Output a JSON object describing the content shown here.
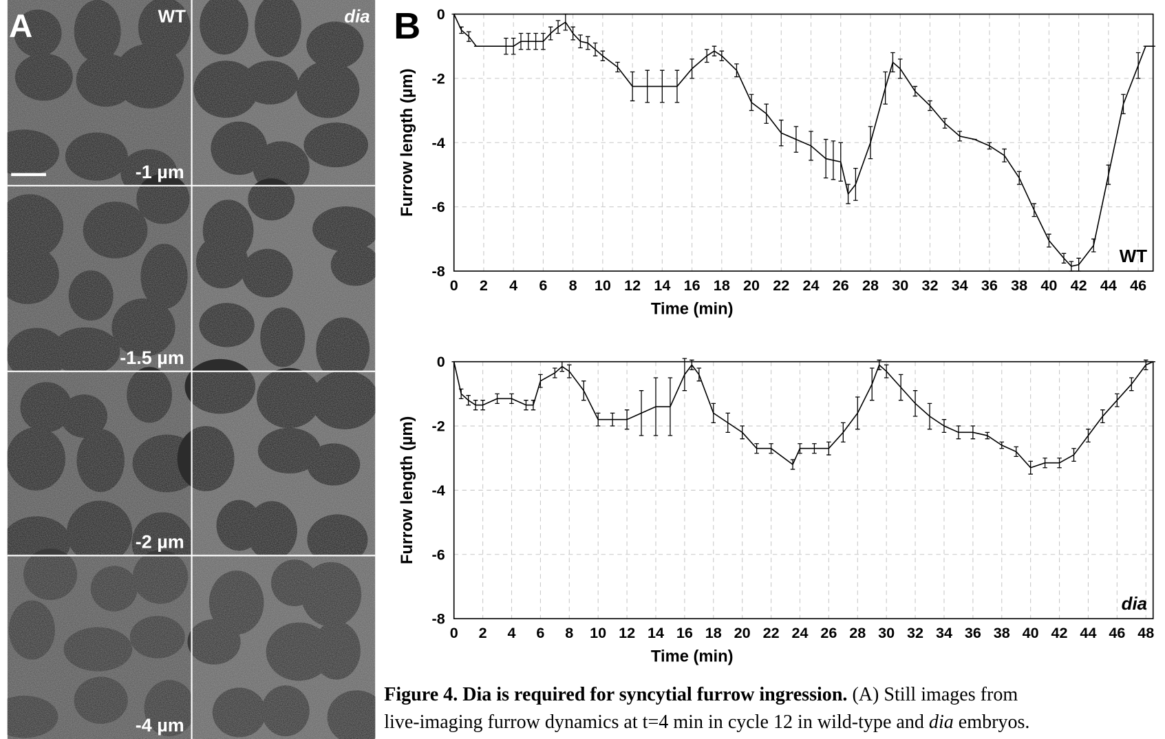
{
  "panel_a": {
    "label": "A",
    "columns": [
      "WT",
      "dia"
    ],
    "depths": [
      "-1 µm",
      "-1.5 µm",
      "-2 µm",
      "-4 µm"
    ]
  },
  "panel_b_label": "B",
  "chart_data": [
    {
      "type": "line",
      "xlabel": "Time (min)",
      "ylabel": "Furrow length (µm)",
      "annotation": "WT",
      "xlim": [
        0,
        47
      ],
      "ylim": [
        -8,
        0
      ],
      "grid": true,
      "xticks": [
        0,
        2,
        4,
        6,
        8,
        10,
        12,
        14,
        16,
        18,
        20,
        22,
        24,
        26,
        28,
        30,
        32,
        34,
        36,
        38,
        40,
        42,
        44,
        46
      ],
      "yticks": [
        0,
        -2,
        -4,
        -6,
        -8
      ],
      "x": [
        0,
        0.5,
        1,
        1.5,
        2,
        3,
        3.5,
        4,
        4.5,
        5,
        5.5,
        6,
        6.5,
        7,
        7.5,
        8,
        8.5,
        9,
        9.5,
        10,
        11,
        12,
        13,
        14,
        15,
        16,
        17,
        17.5,
        18,
        19,
        20,
        21,
        22,
        23,
        24,
        25,
        25.5,
        26,
        26.5,
        27,
        28,
        29,
        29.5,
        30,
        31,
        32,
        33,
        34,
        35,
        36,
        37,
        38,
        39,
        40,
        41,
        41.5,
        42,
        43,
        44,
        45,
        46,
        46.5,
        47
      ],
      "series": [
        {
          "color": "#000000",
          "values": [
            0,
            -0.5,
            -0.7,
            -1,
            -1,
            -1,
            -1,
            -1,
            -0.85,
            -0.85,
            -0.85,
            -0.85,
            -0.6,
            -0.4,
            -0.25,
            -0.6,
            -0.85,
            -0.9,
            -1.1,
            -1.3,
            -1.65,
            -2.25,
            -2.25,
            -2.25,
            -2.25,
            -1.7,
            -1.3,
            -1.15,
            -1.3,
            -1.75,
            -2.75,
            -3.1,
            -3.7,
            -3.9,
            -4.1,
            -4.5,
            -4.55,
            -4.6,
            -5.6,
            -5.3,
            -4,
            -2.3,
            -1.5,
            -1.7,
            -2.4,
            -2.85,
            -3.4,
            -3.8,
            -3.9,
            -4.1,
            -4.4,
            -5.1,
            -6.1,
            -7.05,
            -7.6,
            -7.85,
            -7.8,
            -7.2,
            -5,
            -2.8,
            -1.6,
            -1,
            -1
          ],
          "errors": [
            0,
            0.1,
            0.15,
            0,
            0,
            0,
            0.25,
            0.25,
            0.25,
            0.25,
            0.25,
            0.25,
            0.2,
            0.2,
            0.25,
            0.2,
            0.2,
            0.2,
            0.2,
            0.15,
            0.15,
            0.45,
            0.5,
            0.5,
            0.5,
            0.3,
            0.2,
            0.15,
            0.15,
            0.2,
            0.25,
            0.3,
            0.4,
            0.4,
            0.45,
            0.6,
            0.6,
            0.6,
            0.3,
            0.5,
            0.5,
            0.5,
            0.3,
            0.3,
            0.15,
            0.15,
            0.15,
            0.15,
            0,
            0.1,
            0.2,
            0.2,
            0.2,
            0.2,
            0.15,
            0.15,
            0.2,
            0.2,
            0.3,
            0.3,
            0.4,
            0,
            0
          ]
        }
      ]
    },
    {
      "type": "line",
      "xlabel": "Time (min)",
      "ylabel": "Furrow length (µm)",
      "annotation": "dia",
      "xlim": [
        0,
        48.5
      ],
      "ylim": [
        -8,
        0
      ],
      "grid": true,
      "xticks": [
        0,
        2,
        4,
        6,
        8,
        10,
        12,
        14,
        16,
        18,
        20,
        22,
        24,
        26,
        28,
        30,
        32,
        34,
        36,
        38,
        40,
        42,
        44,
        46,
        48
      ],
      "yticks": [
        0,
        -2,
        -4,
        -6,
        -8
      ],
      "x": [
        0,
        0.5,
        1,
        1.5,
        2,
        3,
        4,
        5,
        5.5,
        6,
        7,
        7.5,
        8,
        9,
        10,
        11,
        12,
        13,
        14,
        15,
        16,
        16.5,
        17,
        18,
        19,
        20,
        21,
        22,
        23.5,
        24,
        25,
        26,
        27,
        28,
        29,
        29.5,
        30,
        31,
        32,
        33,
        34,
        35,
        36,
        37,
        38,
        39,
        40,
        41,
        42,
        43,
        44,
        45,
        46,
        47,
        48,
        48.5
      ],
      "series": [
        {
          "color": "#000000",
          "values": [
            0,
            -1,
            -1.2,
            -1.35,
            -1.35,
            -1.15,
            -1.15,
            -1.35,
            -1.35,
            -0.6,
            -0.35,
            -0.15,
            -0.3,
            -0.9,
            -1.8,
            -1.8,
            -1.8,
            -1.6,
            -1.4,
            -1.4,
            -0.4,
            -0.1,
            -0.4,
            -1.6,
            -1.9,
            -2.2,
            -2.7,
            -2.7,
            -3.2,
            -2.7,
            -2.7,
            -2.7,
            -2.2,
            -1.6,
            -0.7,
            -0.1,
            -0.3,
            -0.8,
            -1.3,
            -1.7,
            -2,
            -2.2,
            -2.2,
            -2.3,
            -2.6,
            -2.8,
            -3.3,
            -3.15,
            -3.15,
            -2.9,
            -2.3,
            -1.7,
            -1.2,
            -0.7,
            -0.1,
            0
          ],
          "errors": [
            0,
            0.15,
            0.15,
            0.15,
            0.15,
            0.15,
            0.15,
            0.15,
            0.15,
            0.2,
            0.15,
            0.15,
            0.2,
            0.3,
            0.2,
            0.2,
            0.3,
            0.7,
            0.9,
            0.9,
            0.5,
            0.15,
            0.2,
            0.3,
            0.3,
            0.2,
            0.15,
            0.15,
            0.15,
            0.15,
            0.15,
            0.2,
            0.3,
            0.5,
            0.5,
            0.15,
            0.2,
            0.4,
            0.4,
            0.4,
            0.2,
            0.2,
            0.2,
            0.1,
            0.1,
            0.15,
            0.2,
            0.15,
            0.15,
            0.2,
            0.2,
            0.2,
            0.2,
            0.2,
            0.15,
            0
          ]
        }
      ]
    }
  ],
  "caption": {
    "title": "Figure 4. Dia is required for syncytial furrow ingression.",
    "text_1": " (A) Still images from",
    "text_2": "live-imaging furrow dynamics at t=4 min in cycle 12 in wild-type and ",
    "text_2_italic": "dia",
    "text_3": " embryos."
  }
}
